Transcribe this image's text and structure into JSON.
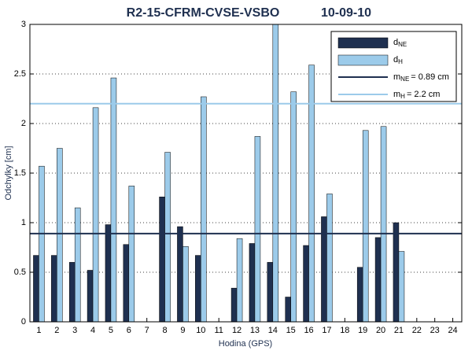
{
  "chart_data": {
    "type": "bar",
    "title": "R2-15-CFRM-CVSE-VSBO",
    "date": "10-09-10",
    "y_label": "Odchylky [cm]",
    "x_label": "Hodina (GPS)",
    "categories": [
      "1",
      "2",
      "3",
      "4",
      "5",
      "6",
      "7",
      "8",
      "9",
      "10",
      "11",
      "12",
      "13",
      "14",
      "15",
      "16",
      "17",
      "18",
      "19",
      "20",
      "21",
      "22",
      "23",
      "24"
    ],
    "series": [
      {
        "name": "d",
        "name_sub": "NE",
        "color": "#1f3050",
        "values": [
          0.67,
          0.67,
          0.6,
          0.52,
          0.98,
          0.78,
          null,
          1.26,
          0.96,
          0.67,
          null,
          0.34,
          0.79,
          0.6,
          0.25,
          0.77,
          1.06,
          null,
          0.55,
          0.85,
          1.0,
          null,
          null,
          null
        ]
      },
      {
        "name": "d",
        "name_sub": "H",
        "color": "#9ccbea",
        "values": [
          1.57,
          1.75,
          1.15,
          2.16,
          2.46,
          1.37,
          null,
          1.71,
          0.76,
          2.27,
          null,
          0.84,
          1.87,
          3.0,
          2.32,
          2.59,
          1.29,
          null,
          1.93,
          1.97,
          0.71,
          null,
          null,
          null
        ]
      }
    ],
    "reference_lines": [
      {
        "name": "m",
        "name_sub": "NE",
        "label": "= 0.89 cm",
        "value": 0.89,
        "color": "#1f3050"
      },
      {
        "name": "m",
        "name_sub": "H",
        "label": "= 2.2 cm",
        "value": 2.2,
        "color": "#9ccbea"
      }
    ],
    "ylim": [
      0,
      3
    ],
    "yticks": [
      0,
      0.5,
      1,
      1.5,
      2,
      2.5,
      3
    ],
    "grid": true,
    "legend": "upper-right"
  }
}
